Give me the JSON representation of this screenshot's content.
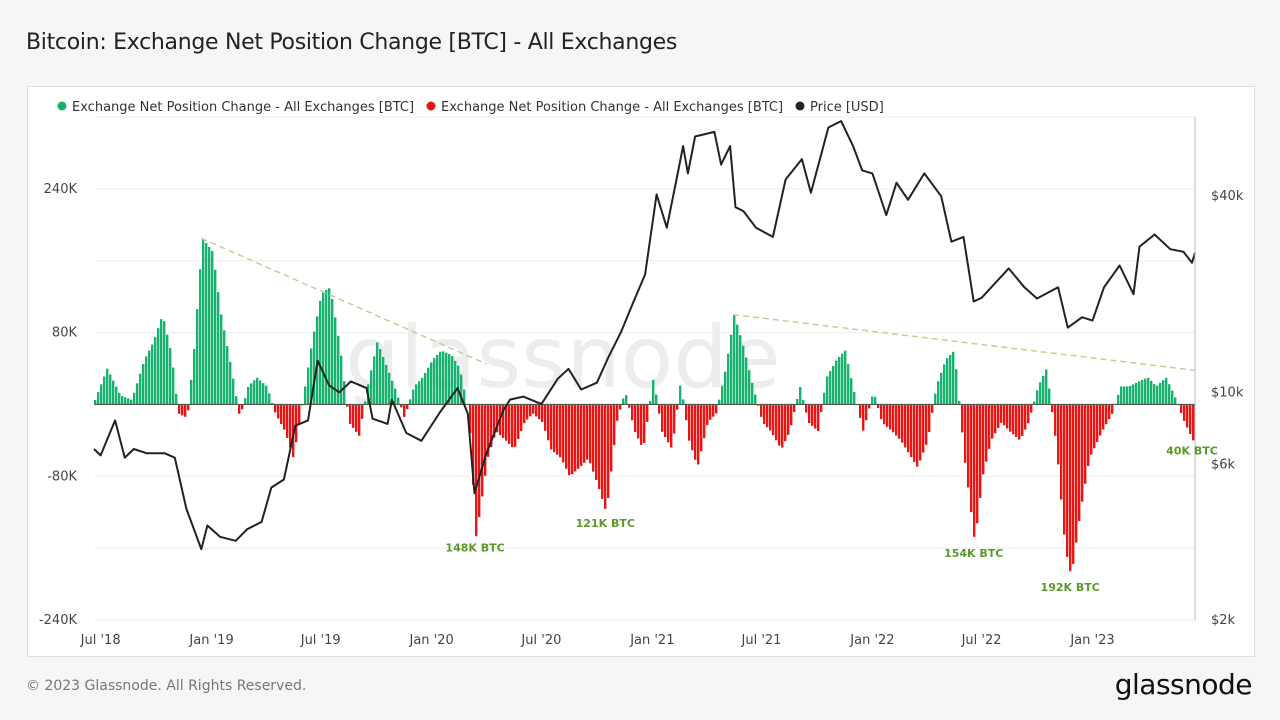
{
  "title": "Bitcoin: Exchange Net Position Change [BTC] - All Exchanges",
  "footer": "© 2023 Glassnode. All Rights Reserved.",
  "brand": "glassnode",
  "watermark": "glassnode",
  "colors": {
    "positive": "#16b26e",
    "negative": "#e81515",
    "price": "#222222",
    "annotation": "#5a9a2a",
    "trend": "#c7cd9a"
  },
  "chart_data": {
    "type": "bar",
    "legend": [
      {
        "name": "Exchange Net Position Change - All Exchanges [BTC]",
        "color": "#16b26e"
      },
      {
        "name": "Exchange Net Position Change - All Exchanges [BTC]",
        "color": "#e81515"
      },
      {
        "name": "Price [USD]",
        "color": "#222222"
      }
    ],
    "legend_position": "top-left",
    "x_ticks": [
      "Jul '18",
      "Jan '19",
      "Jul '19",
      "Jan '20",
      "Jul '20",
      "Jan '21",
      "Jul '21",
      "Jan '22",
      "Jul '22",
      "Jan '23"
    ],
    "x_tick_dates": [
      "2018-07-01",
      "2019-01-01",
      "2019-07-01",
      "2020-01-01",
      "2020-07-01",
      "2021-01-01",
      "2021-07-01",
      "2022-01-01",
      "2022-07-01",
      "2023-01-01"
    ],
    "x_range": [
      "2018-06-20",
      "2023-06-20"
    ],
    "y_left": {
      "ticks": [
        "240K",
        "80K",
        "-80K",
        "-240K"
      ],
      "tick_values": [
        240000,
        80000,
        -80000,
        -240000
      ],
      "range": [
        -240000,
        320000
      ]
    },
    "y_right": {
      "scale": "log",
      "ticks": [
        "$40k",
        "$10k",
        "$6k",
        "$2k"
      ],
      "tick_values": [
        40000,
        10000,
        6000,
        2000
      ],
      "range": [
        2000,
        70000
      ]
    },
    "grid": true,
    "net_position_change": [
      {
        "date": "2018-06-20",
        "value": 5000
      },
      {
        "date": "2018-07-10",
        "value": 40000
      },
      {
        "date": "2018-08-01",
        "value": 10000
      },
      {
        "date": "2018-08-20",
        "value": 5000
      },
      {
        "date": "2018-09-10",
        "value": 50000
      },
      {
        "date": "2018-09-25",
        "value": 70000
      },
      {
        "date": "2018-10-10",
        "value": 100000
      },
      {
        "date": "2018-10-25",
        "value": 55000
      },
      {
        "date": "2018-11-05",
        "value": -10000
      },
      {
        "date": "2018-11-20",
        "value": -15000
      },
      {
        "date": "2018-12-01",
        "value": 60000
      },
      {
        "date": "2018-12-15",
        "value": 185000
      },
      {
        "date": "2019-01-01",
        "value": 170000
      },
      {
        "date": "2019-01-15",
        "value": 100000
      },
      {
        "date": "2019-02-01",
        "value": 40000
      },
      {
        "date": "2019-02-15",
        "value": -15000
      },
      {
        "date": "2019-03-01",
        "value": 20000
      },
      {
        "date": "2019-03-15",
        "value": 30000
      },
      {
        "date": "2019-04-01",
        "value": 20000
      },
      {
        "date": "2019-04-15",
        "value": -10000
      },
      {
        "date": "2019-05-01",
        "value": -30000
      },
      {
        "date": "2019-05-15",
        "value": -60000
      },
      {
        "date": "2019-06-01",
        "value": 10000
      },
      {
        "date": "2019-06-15",
        "value": 70000
      },
      {
        "date": "2019-07-01",
        "value": 125000
      },
      {
        "date": "2019-07-15",
        "value": 130000
      },
      {
        "date": "2019-08-01",
        "value": 60000
      },
      {
        "date": "2019-08-15",
        "value": -20000
      },
      {
        "date": "2019-09-01",
        "value": -35000
      },
      {
        "date": "2019-09-15",
        "value": 20000
      },
      {
        "date": "2019-10-01",
        "value": 70000
      },
      {
        "date": "2019-10-15",
        "value": 45000
      },
      {
        "date": "2019-11-01",
        "value": 15000
      },
      {
        "date": "2019-11-15",
        "value": -15000
      },
      {
        "date": "2019-12-01",
        "value": 20000
      },
      {
        "date": "2019-12-15",
        "value": 30000
      },
      {
        "date": "2020-01-01",
        "value": 50000
      },
      {
        "date": "2020-01-15",
        "value": 60000
      },
      {
        "date": "2020-02-01",
        "value": 55000
      },
      {
        "date": "2020-02-15",
        "value": 40000
      },
      {
        "date": "2020-03-01",
        "value": -10000
      },
      {
        "date": "2020-03-13",
        "value": -148000
      },
      {
        "date": "2020-04-01",
        "value": -60000
      },
      {
        "date": "2020-04-15",
        "value": -30000
      },
      {
        "date": "2020-05-01",
        "value": -40000
      },
      {
        "date": "2020-05-15",
        "value": -50000
      },
      {
        "date": "2020-06-01",
        "value": -20000
      },
      {
        "date": "2020-06-15",
        "value": -10000
      },
      {
        "date": "2020-07-01",
        "value": -20000
      },
      {
        "date": "2020-07-15",
        "value": -50000
      },
      {
        "date": "2020-08-01",
        "value": -60000
      },
      {
        "date": "2020-08-15",
        "value": -80000
      },
      {
        "date": "2020-09-01",
        "value": -70000
      },
      {
        "date": "2020-09-15",
        "value": -60000
      },
      {
        "date": "2020-10-01",
        "value": -90000
      },
      {
        "date": "2020-10-15",
        "value": -121000
      },
      {
        "date": "2020-11-01",
        "value": -20000
      },
      {
        "date": "2020-11-15",
        "value": 15000
      },
      {
        "date": "2020-12-01",
        "value": -30000
      },
      {
        "date": "2020-12-15",
        "value": -50000
      },
      {
        "date": "2021-01-01",
        "value": 30000
      },
      {
        "date": "2021-01-15",
        "value": -30000
      },
      {
        "date": "2021-02-01",
        "value": -50000
      },
      {
        "date": "2021-02-15",
        "value": 25000
      },
      {
        "date": "2021-03-01",
        "value": -40000
      },
      {
        "date": "2021-03-15",
        "value": -70000
      },
      {
        "date": "2021-04-01",
        "value": -20000
      },
      {
        "date": "2021-04-15",
        "value": -10000
      },
      {
        "date": "2021-05-01",
        "value": 40000
      },
      {
        "date": "2021-05-15",
        "value": 100000
      },
      {
        "date": "2021-06-01",
        "value": 60000
      },
      {
        "date": "2021-06-15",
        "value": 20000
      },
      {
        "date": "2021-07-01",
        "value": -20000
      },
      {
        "date": "2021-07-15",
        "value": -30000
      },
      {
        "date": "2021-08-01",
        "value": -50000
      },
      {
        "date": "2021-08-15",
        "value": -30000
      },
      {
        "date": "2021-09-01",
        "value": 20000
      },
      {
        "date": "2021-09-15",
        "value": -20000
      },
      {
        "date": "2021-10-01",
        "value": -30000
      },
      {
        "date": "2021-10-15",
        "value": 30000
      },
      {
        "date": "2021-11-01",
        "value": 50000
      },
      {
        "date": "2021-11-15",
        "value": 60000
      },
      {
        "date": "2021-12-01",
        "value": 10000
      },
      {
        "date": "2021-12-15",
        "value": -30000
      },
      {
        "date": "2022-01-01",
        "value": 15000
      },
      {
        "date": "2022-01-15",
        "value": -20000
      },
      {
        "date": "2022-02-01",
        "value": -30000
      },
      {
        "date": "2022-02-15",
        "value": -40000
      },
      {
        "date": "2022-03-01",
        "value": -55000
      },
      {
        "date": "2022-03-15",
        "value": -70000
      },
      {
        "date": "2022-04-01",
        "value": -40000
      },
      {
        "date": "2022-04-15",
        "value": 20000
      },
      {
        "date": "2022-05-01",
        "value": 50000
      },
      {
        "date": "2022-05-15",
        "value": 60000
      },
      {
        "date": "2022-06-01",
        "value": -60000
      },
      {
        "date": "2022-06-18",
        "value": -154000
      },
      {
        "date": "2022-07-01",
        "value": -80000
      },
      {
        "date": "2022-07-15",
        "value": -40000
      },
      {
        "date": "2022-08-01",
        "value": -20000
      },
      {
        "date": "2022-08-15",
        "value": -30000
      },
      {
        "date": "2022-09-01",
        "value": -40000
      },
      {
        "date": "2022-09-15",
        "value": -20000
      },
      {
        "date": "2022-10-01",
        "value": 20000
      },
      {
        "date": "2022-10-15",
        "value": 40000
      },
      {
        "date": "2022-11-01",
        "value": -50000
      },
      {
        "date": "2022-11-15",
        "value": -160000
      },
      {
        "date": "2022-11-25",
        "value": -192000
      },
      {
        "date": "2022-12-10",
        "value": -120000
      },
      {
        "date": "2022-12-25",
        "value": -60000
      },
      {
        "date": "2023-01-15",
        "value": -30000
      },
      {
        "date": "2023-02-01",
        "value": -10000
      },
      {
        "date": "2023-02-15",
        "value": 20000
      },
      {
        "date": "2023-03-01",
        "value": 20000
      },
      {
        "date": "2023-03-15",
        "value": 25000
      },
      {
        "date": "2023-04-01",
        "value": 30000
      },
      {
        "date": "2023-04-15",
        "value": 20000
      },
      {
        "date": "2023-05-01",
        "value": 30000
      },
      {
        "date": "2023-05-15",
        "value": 10000
      },
      {
        "date": "2023-06-01",
        "value": -20000
      },
      {
        "date": "2023-06-15",
        "value": -40000
      }
    ],
    "price": [
      {
        "date": "2018-06-20",
        "value": 6700
      },
      {
        "date": "2018-07-01",
        "value": 6400
      },
      {
        "date": "2018-07-25",
        "value": 8200
      },
      {
        "date": "2018-08-10",
        "value": 6300
      },
      {
        "date": "2018-08-25",
        "value": 6700
      },
      {
        "date": "2018-09-15",
        "value": 6500
      },
      {
        "date": "2018-10-15",
        "value": 6500
      },
      {
        "date": "2018-11-01",
        "value": 6300
      },
      {
        "date": "2018-11-20",
        "value": 4400
      },
      {
        "date": "2018-12-15",
        "value": 3300
      },
      {
        "date": "2018-12-25",
        "value": 3900
      },
      {
        "date": "2019-01-15",
        "value": 3600
      },
      {
        "date": "2019-02-10",
        "value": 3500
      },
      {
        "date": "2019-03-01",
        "value": 3800
      },
      {
        "date": "2019-03-25",
        "value": 4000
      },
      {
        "date": "2019-04-10",
        "value": 5100
      },
      {
        "date": "2019-05-01",
        "value": 5400
      },
      {
        "date": "2019-05-20",
        "value": 7900
      },
      {
        "date": "2019-06-10",
        "value": 8200
      },
      {
        "date": "2019-06-26",
        "value": 12500
      },
      {
        "date": "2019-07-15",
        "value": 10500
      },
      {
        "date": "2019-08-01",
        "value": 10000
      },
      {
        "date": "2019-08-20",
        "value": 10800
      },
      {
        "date": "2019-09-15",
        "value": 10300
      },
      {
        "date": "2019-09-25",
        "value": 8300
      },
      {
        "date": "2019-10-20",
        "value": 8000
      },
      {
        "date": "2019-10-27",
        "value": 9500
      },
      {
        "date": "2019-11-20",
        "value": 7500
      },
      {
        "date": "2019-12-15",
        "value": 7100
      },
      {
        "date": "2020-01-15",
        "value": 8700
      },
      {
        "date": "2020-02-13",
        "value": 10300
      },
      {
        "date": "2020-03-01",
        "value": 8600
      },
      {
        "date": "2020-03-12",
        "value": 4900
      },
      {
        "date": "2020-04-01",
        "value": 6500
      },
      {
        "date": "2020-04-29",
        "value": 8800
      },
      {
        "date": "2020-05-10",
        "value": 9500
      },
      {
        "date": "2020-06-01",
        "value": 9700
      },
      {
        "date": "2020-07-01",
        "value": 9200
      },
      {
        "date": "2020-07-28",
        "value": 11000
      },
      {
        "date": "2020-08-15",
        "value": 11800
      },
      {
        "date": "2020-09-05",
        "value": 10200
      },
      {
        "date": "2020-10-01",
        "value": 10700
      },
      {
        "date": "2020-10-20",
        "value": 12800
      },
      {
        "date": "2020-11-10",
        "value": 15300
      },
      {
        "date": "2020-12-01",
        "value": 19000
      },
      {
        "date": "2020-12-20",
        "value": 23000
      },
      {
        "date": "2021-01-08",
        "value": 40500
      },
      {
        "date": "2021-01-25",
        "value": 32000
      },
      {
        "date": "2021-02-10",
        "value": 45000
      },
      {
        "date": "2021-02-21",
        "value": 57000
      },
      {
        "date": "2021-03-01",
        "value": 47000
      },
      {
        "date": "2021-03-13",
        "value": 61000
      },
      {
        "date": "2021-04-14",
        "value": 63000
      },
      {
        "date": "2021-04-25",
        "value": 50000
      },
      {
        "date": "2021-05-10",
        "value": 57000
      },
      {
        "date": "2021-05-19",
        "value": 37000
      },
      {
        "date": "2021-06-01",
        "value": 36000
      },
      {
        "date": "2021-06-22",
        "value": 32000
      },
      {
        "date": "2021-07-20",
        "value": 30000
      },
      {
        "date": "2021-08-10",
        "value": 45000
      },
      {
        "date": "2021-09-06",
        "value": 52000
      },
      {
        "date": "2021-09-21",
        "value": 41000
      },
      {
        "date": "2021-10-20",
        "value": 65000
      },
      {
        "date": "2021-11-10",
        "value": 68000
      },
      {
        "date": "2021-11-30",
        "value": 57000
      },
      {
        "date": "2021-12-15",
        "value": 48000
      },
      {
        "date": "2022-01-01",
        "value": 47000
      },
      {
        "date": "2022-01-24",
        "value": 35000
      },
      {
        "date": "2022-02-10",
        "value": 44000
      },
      {
        "date": "2022-03-01",
        "value": 39000
      },
      {
        "date": "2022-03-28",
        "value": 47000
      },
      {
        "date": "2022-04-25",
        "value": 40000
      },
      {
        "date": "2022-05-12",
        "value": 29000
      },
      {
        "date": "2022-06-01",
        "value": 30000
      },
      {
        "date": "2022-06-18",
        "value": 19000
      },
      {
        "date": "2022-07-01",
        "value": 19500
      },
      {
        "date": "2022-08-15",
        "value": 24000
      },
      {
        "date": "2022-09-10",
        "value": 21000
      },
      {
        "date": "2022-10-01",
        "value": 19400
      },
      {
        "date": "2022-11-05",
        "value": 21000
      },
      {
        "date": "2022-11-21",
        "value": 15800
      },
      {
        "date": "2022-12-15",
        "value": 17000
      },
      {
        "date": "2023-01-01",
        "value": 16600
      },
      {
        "date": "2023-01-20",
        "value": 21000
      },
      {
        "date": "2023-02-15",
        "value": 24500
      },
      {
        "date": "2023-03-10",
        "value": 20000
      },
      {
        "date": "2023-03-20",
        "value": 28000
      },
      {
        "date": "2023-04-14",
        "value": 30500
      },
      {
        "date": "2023-05-10",
        "value": 27500
      },
      {
        "date": "2023-06-01",
        "value": 27000
      },
      {
        "date": "2023-06-15",
        "value": 25000
      },
      {
        "date": "2023-06-20",
        "value": 26800
      }
    ],
    "annotations": [
      {
        "text": "148K BTC",
        "date": "2020-03-13",
        "value": -148000
      },
      {
        "text": "121K BTC",
        "date": "2020-10-15",
        "value": -121000
      },
      {
        "text": "154K BTC",
        "date": "2022-06-18",
        "value": -154000
      },
      {
        "text": "192K BTC",
        "date": "2022-11-25",
        "value": -192000
      },
      {
        "text": "40K BTC",
        "date": "2023-06-15",
        "value": -40000
      }
    ],
    "trend_lines": [
      {
        "start": {
          "date": "2018-12-15",
          "value": 185000
        },
        "end": {
          "date": "2020-04-01",
          "value": 45000
        }
      },
      {
        "start": {
          "date": "2021-05-15",
          "value": 100000
        },
        "end": {
          "date": "2023-06-20",
          "value": 38000
        }
      }
    ]
  }
}
